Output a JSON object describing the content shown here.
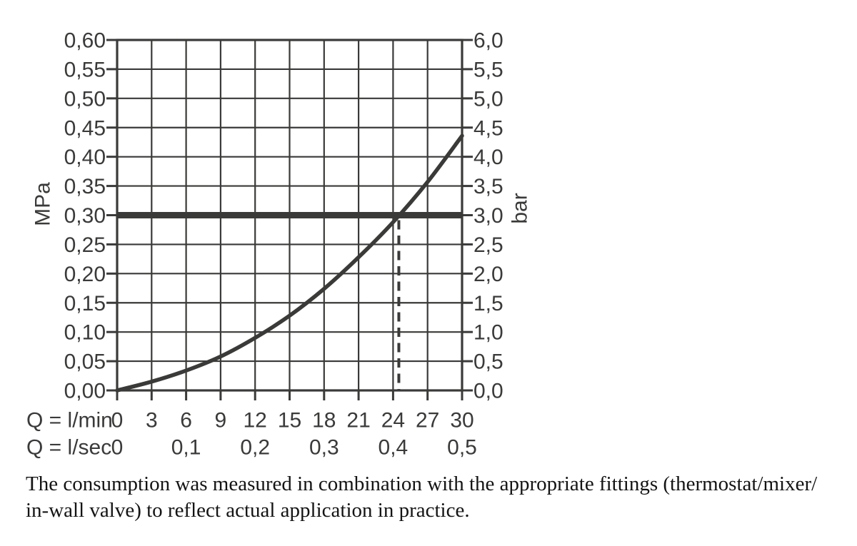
{
  "page": {
    "background": "#ffffff",
    "ink_color": "#3a3a39",
    "caption_color": "#141414"
  },
  "chart_data": {
    "type": "line",
    "title": "",
    "grid": true,
    "legend": false,
    "y_axis_left": {
      "unit": "MPa",
      "min": 0,
      "max": 0.6,
      "tick_labels": [
        "0,60",
        "0,55",
        "0,50",
        "0,45",
        "0,40",
        "0,35",
        "0,30",
        "0,25",
        "0,20",
        "0,15",
        "0,10",
        "0,05",
        "0,00"
      ]
    },
    "y_axis_right": {
      "unit": "bar",
      "min": 0,
      "max": 6,
      "tick_labels": [
        "6,0",
        "5,5",
        "5,0",
        "4,5",
        "4,0",
        "3,5",
        "3,0",
        "2,5",
        "2,0",
        "1,5",
        "1,0",
        "0,5",
        "0,0"
      ]
    },
    "x_axis": {
      "min_l_min": 0,
      "max_l_min": 30,
      "rows": [
        {
          "label": "Q = l/min",
          "tick_labels": [
            "0",
            "3",
            "6",
            "9",
            "12",
            "15",
            "18",
            "21",
            "24",
            "27",
            "30"
          ],
          "positions_l_min": [
            0,
            3,
            6,
            9,
            12,
            15,
            18,
            21,
            24,
            27,
            30
          ]
        },
        {
          "label": "Q = l/sec",
          "tick_labels": [
            "0",
            "0,1",
            "0,2",
            "0,3",
            "0,4",
            "0,5"
          ],
          "positions_l_min": [
            0,
            6,
            12,
            18,
            24,
            30
          ]
        }
      ]
    },
    "series": [
      {
        "name": "flow-rate-vs-pressure-loss-curve",
        "q_l_min": [
          0,
          3,
          6,
          9,
          12,
          15,
          18,
          21,
          24,
          27,
          30
        ],
        "pressure_bar": [
          0,
          0.15,
          0.34,
          0.58,
          0.9,
          1.28,
          1.74,
          2.28,
          2.88,
          3.57,
          4.36
        ]
      }
    ],
    "annotations": {
      "reference_pressure_bar": 3.0,
      "dashed_flow_l_min": 24.5
    }
  },
  "caption": {
    "line1": "The consumption was measured in combination with the appropriate fittings (thermostat/mixer/",
    "line2": "in-wall valve) to reflect actual application in practice."
  }
}
